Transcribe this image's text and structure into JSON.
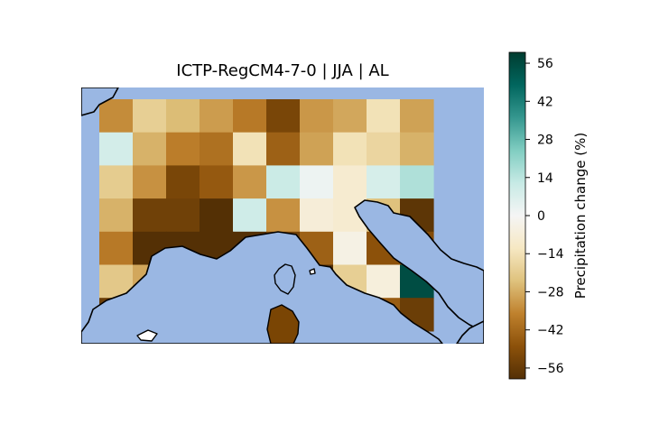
{
  "title": "ICTP-RegCM4-7-0 | JJA | AL",
  "colorbar": {
    "label": "Precipitation change (%)",
    "ticks": [
      56,
      42,
      28,
      14,
      0,
      -14,
      -28,
      -42,
      -56
    ],
    "tick_labels": [
      "56",
      "42",
      "28",
      "14",
      "0",
      "−14",
      "−28",
      "−42",
      "−56"
    ],
    "range": [
      -60,
      60
    ],
    "colormap": "BrBG",
    "stops": [
      "#543005",
      "#8c510a",
      "#bf812d",
      "#dfc27d",
      "#f6e8c3",
      "#f5f5f5",
      "#c7eae5",
      "#80cdc1",
      "#35978f",
      "#01665e",
      "#003c30"
    ]
  },
  "colors": {
    "sea": "#9ab7e3",
    "coast": "#000000",
    "nodata": "#ffffff"
  },
  "chart_data": {
    "type": "heatmap",
    "title": "ICTP-RegCM4-7-0 | JJA | AL",
    "value_label": "Precipitation change (%)",
    "vmin": -60,
    "vmax": 60,
    "grid_rows": 7,
    "grid_cols": 11,
    "values": [
      [
        null,
        -34,
        -20,
        -25,
        -31,
        -38,
        -52,
        -32,
        -29,
        -14,
        -30
      ],
      [
        null,
        9,
        -27,
        -37,
        -40,
        -14,
        -44,
        -30,
        -14,
        -18,
        -27
      ],
      [
        null,
        -21,
        -33,
        -52,
        -46,
        -32,
        11,
        2,
        -9,
        8,
        16
      ],
      [
        null,
        -27,
        -54,
        -54,
        -61,
        10,
        -33,
        -7,
        -9,
        -24,
        -58
      ],
      [
        null,
        -38,
        -61,
        -62,
        -67,
        -67,
        -53,
        -44,
        -4,
        -48,
        -50
      ],
      [
        null,
        -22,
        -29,
        -40,
        -28,
        -23,
        -46,
        -61,
        -20,
        -6,
        55
      ],
      [
        null,
        -55,
        -45,
        -50,
        -60,
        -55,
        -52,
        -40,
        -40,
        -45,
        -55
      ]
    ]
  }
}
